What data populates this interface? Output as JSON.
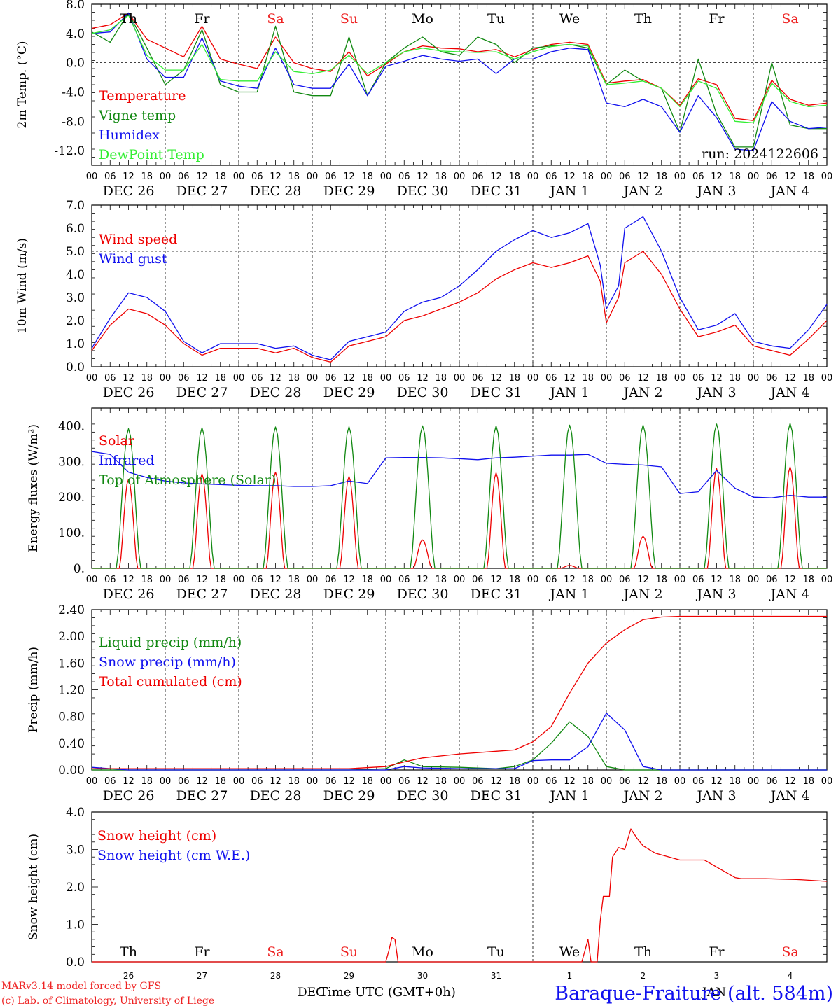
{
  "colors": {
    "red": "#ee0000",
    "green": "#118811",
    "blue": "#1010ee",
    "lightgreen": "#33ee33",
    "weekend": "#ee2222",
    "axis": "#000000"
  },
  "footer": {
    "model": "MARv3.14 model forced by GFS",
    "lab": "(c) Lab. of Climatology, University of Liege",
    "xlabel": "Time UTC (GMT+0h)",
    "dec_label": "DEC",
    "jan_label": "JAN",
    "station": "Baraque-Fraiture (alt. 584m)"
  },
  "days": {
    "weekday": [
      "Th",
      "Fr",
      "Sa",
      "Su",
      "Mo",
      "Tu",
      "We",
      "Th",
      "Fr",
      "Sa"
    ],
    "weekend": [
      false,
      false,
      true,
      true,
      false,
      false,
      false,
      false,
      false,
      true
    ],
    "date_labels": [
      "DEC 26",
      "DEC 27",
      "DEC 28",
      "DEC 29",
      "DEC 30",
      "DEC 31",
      "JAN  1",
      "JAN  2",
      "JAN  3",
      "JAN  4"
    ],
    "day_numbers": [
      "26",
      "27",
      "28",
      "29",
      "30",
      "31",
      "1",
      "2",
      "3",
      "4"
    ],
    "hour_labels": [
      "00",
      "06",
      "12",
      "18"
    ],
    "end_hour_label": "00"
  },
  "chart_data": [
    {
      "type": "line",
      "ylabel": "2m Temp. (°C)",
      "ylim": [
        -14,
        8
      ],
      "yticks": [
        "8.0",
        "4.0",
        "0.0",
        "-4.0",
        "-8.0",
        "-12.0"
      ],
      "ytick_values": [
        8,
        4,
        0,
        -4,
        -8,
        -12
      ],
      "ref_line": 0,
      "annotation": "run: 2024122606",
      "show_weekday_labels": true,
      "x_hours": [
        0,
        6,
        12,
        18,
        24,
        30,
        36,
        42,
        48,
        54,
        60,
        66,
        72,
        78,
        84,
        90,
        96,
        102,
        108,
        114,
        120,
        126,
        132,
        138,
        144,
        150,
        156,
        162,
        168,
        174,
        180,
        186,
        192,
        198,
        204,
        210,
        216,
        222,
        228,
        234,
        240
      ],
      "series": [
        {
          "name": "Temperature",
          "color": "red",
          "values": [
            4.7,
            5.2,
            6.8,
            3.2,
            2.0,
            0.8,
            5.0,
            0.5,
            -0.2,
            -0.8,
            3.5,
            0.0,
            -0.8,
            -1.2,
            1.5,
            -1.8,
            -0.2,
            1.5,
            2.3,
            2.0,
            1.9,
            1.5,
            1.8,
            0.8,
            1.8,
            2.5,
            2.8,
            2.5,
            -2.8,
            -2.5,
            -2.3,
            -3.5,
            -5.8,
            -2.2,
            -3.0,
            -7.6,
            -7.9,
            -2.4,
            -5.0,
            -5.8,
            -5.5
          ]
        },
        {
          "name": "Vigne temp",
          "color": "green",
          "values": [
            4.2,
            2.8,
            6.8,
            2.0,
            -3.0,
            -1.0,
            4.5,
            -3.0,
            -4.0,
            -4.0,
            5.0,
            -4.0,
            -4.5,
            -4.5,
            3.5,
            -4.5,
            0.0,
            2.0,
            3.5,
            1.5,
            1.0,
            3.5,
            2.5,
            0.0,
            2.0,
            2.3,
            2.5,
            2.0,
            -3.0,
            -1.0,
            -2.5,
            -3.5,
            -9.5,
            0.5,
            -7.0,
            -11.5,
            -11.5,
            0.0,
            -8.5,
            -9.0,
            -9.0
          ]
        },
        {
          "name": "Humidex",
          "color": "blue",
          "values": [
            4.0,
            4.2,
            6.8,
            0.5,
            -2.0,
            -2.0,
            3.4,
            -2.5,
            -3.2,
            -3.5,
            2.0,
            -3.0,
            -3.5,
            -3.5,
            -0.2,
            -4.5,
            -0.5,
            0.2,
            1.0,
            0.5,
            0.2,
            0.5,
            -1.5,
            0.5,
            0.5,
            1.5,
            2.0,
            1.8,
            -5.5,
            -6.0,
            -5.0,
            -6.0,
            -9.5,
            -4.5,
            -7.5,
            -11.8,
            -12.0,
            -5.3,
            -8.0,
            -9.0,
            -8.8
          ]
        },
        {
          "name": "DewPoint Temp",
          "color": "lightgreen",
          "values": [
            4.0,
            4.5,
            6.5,
            1.0,
            -1.0,
            -1.0,
            2.5,
            -2.3,
            -2.5,
            -2.5,
            1.5,
            -1.2,
            -1.5,
            -1.0,
            1.0,
            -1.5,
            0.0,
            1.5,
            2.0,
            1.6,
            1.5,
            1.4,
            1.5,
            0.5,
            1.5,
            2.2,
            2.5,
            2.3,
            -3.0,
            -2.8,
            -2.5,
            -3.5,
            -6.0,
            -2.5,
            -3.5,
            -8.0,
            -8.2,
            -2.8,
            -5.3,
            -6.0,
            -5.8
          ]
        }
      ]
    },
    {
      "type": "line",
      "ylabel": "10m Wind (m/s)",
      "ylim": [
        0,
        7
      ],
      "yticks": [
        "7.0",
        "6.0",
        "5.0",
        "4.0",
        "3.0",
        "2.0",
        "1.0",
        "0.0"
      ],
      "ytick_values": [
        7,
        6,
        5,
        4,
        3,
        2,
        1,
        0
      ],
      "ref_line": 5,
      "x_hours": [
        0,
        6,
        12,
        18,
        24,
        30,
        36,
        42,
        48,
        54,
        60,
        66,
        72,
        78,
        84,
        90,
        96,
        102,
        108,
        114,
        120,
        126,
        132,
        138,
        144,
        150,
        156,
        162,
        166,
        168,
        172,
        174,
        180,
        186,
        192,
        198,
        204,
        210,
        216,
        222,
        228,
        234,
        240
      ],
      "series": [
        {
          "name": "Wind speed",
          "color": "red",
          "values": [
            0.7,
            1.8,
            2.5,
            2.3,
            1.8,
            1.0,
            0.5,
            0.8,
            0.8,
            0.8,
            0.6,
            0.8,
            0.4,
            0.2,
            0.9,
            1.1,
            1.3,
            2.0,
            2.2,
            2.5,
            2.8,
            3.2,
            3.8,
            4.2,
            4.5,
            4.3,
            4.5,
            4.8,
            3.7,
            1.9,
            3.0,
            4.5,
            5.0,
            4.0,
            2.5,
            1.3,
            1.5,
            1.8,
            0.9,
            0.7,
            0.5,
            1.2,
            2.0
          ]
        },
        {
          "name": "Wind gust",
          "color": "blue",
          "values": [
            0.8,
            2.1,
            3.2,
            3.0,
            2.4,
            1.1,
            0.6,
            1.0,
            1.0,
            1.0,
            0.8,
            0.9,
            0.5,
            0.3,
            1.1,
            1.3,
            1.5,
            2.4,
            2.8,
            3.0,
            3.5,
            4.2,
            5.0,
            5.5,
            5.9,
            5.6,
            5.8,
            6.2,
            4.4,
            2.5,
            3.5,
            6.0,
            6.5,
            5.0,
            3.0,
            1.6,
            1.8,
            2.3,
            1.1,
            0.9,
            0.8,
            1.6,
            2.7
          ]
        }
      ]
    },
    {
      "type": "line",
      "ylabel": "Energy fluxes (W/m²)",
      "ylim": [
        0,
        450
      ],
      "yticks": [
        "400.",
        "300.",
        "200.",
        "100.",
        "0."
      ],
      "ytick_values": [
        400,
        300,
        200,
        100,
        0
      ],
      "ref_line": null,
      "x_hours": [
        0,
        6,
        12,
        18,
        24,
        30,
        36,
        42,
        48,
        54,
        60,
        66,
        72,
        78,
        84,
        90,
        96,
        102,
        108,
        114,
        120,
        126,
        132,
        138,
        144,
        150,
        156,
        162,
        168,
        174,
        180,
        186,
        192,
        198,
        204,
        210,
        216,
        222,
        228,
        234,
        240
      ],
      "series": [
        {
          "name": "Solar",
          "color": "red",
          "peaks": [
            250,
            265,
            270,
            258,
            80,
            268,
            8,
            90,
            280,
            285
          ]
        },
        {
          "name": "Infrared",
          "color": "blue",
          "values": [
            328,
            320,
            270,
            255,
            245,
            240,
            237,
            235,
            233,
            232,
            232,
            230,
            230,
            232,
            245,
            238,
            310,
            311,
            311,
            310,
            308,
            305,
            310,
            312,
            315,
            318,
            318,
            320,
            295,
            292,
            290,
            285,
            210,
            215,
            275,
            225,
            200,
            198,
            205,
            200,
            200
          ]
        },
        {
          "name": "Top of Atmosphere (Solar)",
          "color": "green",
          "peaks": [
            392,
            395,
            397,
            398,
            400,
            400,
            402,
            402,
            405,
            407
          ]
        }
      ]
    },
    {
      "type": "line",
      "ylabel": "Precip (mm/h)",
      "ylim": [
        0,
        2.4
      ],
      "yticks": [
        "2.40",
        "2.00",
        "1.60",
        "1.20",
        "0.80",
        "0.40",
        "0.00"
      ],
      "ytick_values": [
        2.4,
        2.0,
        1.6,
        1.2,
        0.8,
        0.4,
        0.0
      ],
      "ref_line": null,
      "x_hours": [
        0,
        12,
        24,
        36,
        48,
        60,
        72,
        84,
        96,
        102,
        108,
        120,
        132,
        138,
        144,
        150,
        156,
        162,
        168,
        174,
        180,
        186,
        192,
        204,
        216,
        228,
        240
      ],
      "series": [
        {
          "name": "Liquid precip (mm/h)",
          "color": "green",
          "values": [
            0.0,
            0.0,
            0.0,
            0.0,
            0.0,
            0.0,
            0.0,
            0.0,
            0.02,
            0.15,
            0.05,
            0.04,
            0.02,
            0.05,
            0.15,
            0.4,
            0.72,
            0.5,
            0.05,
            0.0,
            0.0,
            0.0,
            0.0,
            0.0,
            0.0,
            0.0,
            0.0
          ]
        },
        {
          "name": "Snow precip (mm/h)",
          "color": "blue",
          "values": [
            0.04,
            0.0,
            0.0,
            0.0,
            0.0,
            0.0,
            0.0,
            0.0,
            0.0,
            0.05,
            0.03,
            0.02,
            0.02,
            0.02,
            0.14,
            0.15,
            0.15,
            0.35,
            0.85,
            0.6,
            0.05,
            0.0,
            0.0,
            0.0,
            0.0,
            0.0,
            0.0
          ]
        },
        {
          "name": "Total cumulated (cm)",
          "color": "red",
          "values": [
            0.02,
            0.02,
            0.02,
            0.02,
            0.02,
            0.02,
            0.02,
            0.02,
            0.05,
            0.12,
            0.18,
            0.24,
            0.28,
            0.3,
            0.42,
            0.65,
            1.15,
            1.6,
            1.9,
            2.1,
            2.25,
            2.29,
            2.3,
            2.3,
            2.3,
            2.3,
            2.3
          ]
        }
      ]
    },
    {
      "type": "line",
      "ylabel": "Snow height (cm)",
      "ylim": [
        0,
        4
      ],
      "yticks": [
        "4.0",
        "3.0",
        "2.0",
        "1.0",
        "0.0"
      ],
      "ytick_values": [
        4,
        3,
        2,
        1,
        0
      ],
      "ref_line": null,
      "show_bottom_weekdays": true,
      "x_hours": [
        0,
        96,
        97,
        98,
        99,
        100,
        160,
        161,
        162,
        163,
        164,
        165,
        166,
        167,
        168,
        169,
        170,
        172,
        174,
        176,
        178,
        180,
        184,
        192,
        200,
        210,
        212,
        220,
        230,
        240
      ],
      "series": [
        {
          "name": "Snow height (cm)",
          "color": "red",
          "values": [
            0,
            0,
            0.3,
            0.65,
            0.6,
            0,
            0,
            0.3,
            0.6,
            0,
            0,
            0,
            1.1,
            1.75,
            1.75,
            1.75,
            2.8,
            3.05,
            3.0,
            3.55,
            3.3,
            3.1,
            2.9,
            2.72,
            2.72,
            2.25,
            2.22,
            2.22,
            2.2,
            2.15
          ]
        },
        {
          "name": "Snow height (cm W.E.)",
          "color": "blue",
          "values": []
        }
      ]
    }
  ]
}
